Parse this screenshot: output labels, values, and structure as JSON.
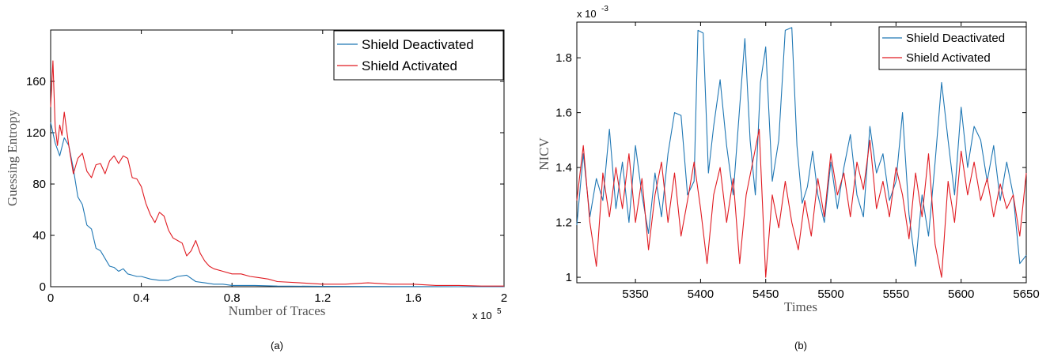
{
  "chart_data": [
    {
      "type": "line",
      "caption": "(a)",
      "xlabel": "Number of Traces",
      "ylabel": "Guessing Entropy",
      "x_multiplier_label": "x 10",
      "x_multiplier_exp": "5",
      "xlim": [
        0,
        2
      ],
      "ylim": [
        0,
        200
      ],
      "xticks": [
        0,
        0.4,
        0.8,
        1.2,
        1.6,
        2
      ],
      "xtick_labels": [
        "0",
        "0.4",
        "0.8",
        "1.2",
        "1.6",
        "2"
      ],
      "yticks": [
        0,
        40,
        80,
        120,
        160
      ],
      "ytick_labels": [
        "0",
        "40",
        "80",
        "120",
        "160"
      ],
      "grid": false,
      "legend_position": "top-right",
      "series": [
        {
          "name": "Shield Deactivated",
          "color": "#1f77b4",
          "x": [
            0,
            0.02,
            0.04,
            0.06,
            0.08,
            0.1,
            0.12,
            0.14,
            0.16,
            0.18,
            0.2,
            0.22,
            0.24,
            0.26,
            0.28,
            0.3,
            0.32,
            0.34,
            0.36,
            0.38,
            0.4,
            0.44,
            0.48,
            0.52,
            0.56,
            0.6,
            0.64,
            0.68,
            0.72,
            0.76,
            0.8,
            0.9,
            1.0,
            1.2,
            1.4,
            1.6,
            1.8,
            2.0
          ],
          "y": [
            128,
            112,
            102,
            116,
            110,
            92,
            70,
            64,
            48,
            45,
            30,
            28,
            22,
            16,
            15,
            12,
            14,
            10,
            9,
            8,
            8,
            6,
            5,
            5,
            8,
            9,
            4,
            3,
            2,
            2,
            1,
            1,
            0.5,
            0.3,
            0.2,
            0.1,
            0,
            0
          ]
        },
        {
          "name": "Shield Activated",
          "color": "#e01b22",
          "x": [
            0,
            0.01,
            0.02,
            0.03,
            0.04,
            0.05,
            0.06,
            0.08,
            0.1,
            0.12,
            0.14,
            0.16,
            0.18,
            0.2,
            0.22,
            0.24,
            0.26,
            0.28,
            0.3,
            0.32,
            0.34,
            0.36,
            0.38,
            0.4,
            0.42,
            0.44,
            0.46,
            0.48,
            0.5,
            0.52,
            0.54,
            0.56,
            0.58,
            0.6,
            0.62,
            0.64,
            0.66,
            0.68,
            0.7,
            0.72,
            0.76,
            0.8,
            0.84,
            0.88,
            0.92,
            0.96,
            1.0,
            1.1,
            1.2,
            1.3,
            1.4,
            1.5,
            1.6,
            1.7,
            1.8,
            1.9,
            2.0
          ],
          "y": [
            140,
            176,
            125,
            110,
            126,
            118,
            136,
            110,
            88,
            100,
            104,
            90,
            85,
            95,
            96,
            88,
            98,
            102,
            96,
            102,
            100,
            85,
            84,
            78,
            65,
            56,
            50,
            58,
            55,
            44,
            38,
            36,
            34,
            24,
            28,
            36,
            26,
            20,
            16,
            14,
            12,
            10,
            10,
            8,
            7,
            6,
            4,
            3,
            2,
            2,
            3,
            2,
            2,
            1,
            1,
            0.5,
            0.5
          ]
        }
      ]
    },
    {
      "type": "line",
      "caption": "(b)",
      "xlabel": "Times",
      "ylabel": "NICV",
      "y_multiplier_label": "x 10",
      "y_multiplier_exp": "-3",
      "xlim": [
        5305,
        5650
      ],
      "ylim": [
        0.98,
        1.93
      ],
      "xticks": [
        5350,
        5400,
        5450,
        5500,
        5550,
        5600,
        5650
      ],
      "xtick_labels": [
        "5350",
        "5400",
        "5450",
        "5500",
        "5550",
        "5600",
        "5650"
      ],
      "yticks": [
        1,
        1.2,
        1.4,
        1.6,
        1.8
      ],
      "ytick_labels": [
        "1",
        "1.2",
        "1.4",
        "1.6",
        "1.8"
      ],
      "grid": false,
      "legend_position": "top-right",
      "series": [
        {
          "name": "Shield Deactivated",
          "color": "#1f77b4",
          "x": [
            5305,
            5310,
            5315,
            5320,
            5325,
            5330,
            5335,
            5340,
            5345,
            5350,
            5355,
            5360,
            5365,
            5370,
            5375,
            5380,
            5385,
            5390,
            5395,
            5398,
            5402,
            5406,
            5410,
            5415,
            5420,
            5425,
            5430,
            5434,
            5438,
            5442,
            5446,
            5450,
            5455,
            5460,
            5465,
            5470,
            5474,
            5478,
            5482,
            5486,
            5490,
            5495,
            5500,
            5505,
            5510,
            5515,
            5520,
            5525,
            5530,
            5535,
            5540,
            5545,
            5550,
            5555,
            5560,
            5565,
            5570,
            5575,
            5580,
            5585,
            5590,
            5595,
            5600,
            5605,
            5610,
            5615,
            5620,
            5625,
            5630,
            5635,
            5640,
            5645,
            5650
          ],
          "y": [
            1.19,
            1.45,
            1.22,
            1.36,
            1.28,
            1.54,
            1.25,
            1.42,
            1.2,
            1.48,
            1.3,
            1.16,
            1.38,
            1.22,
            1.45,
            1.6,
            1.59,
            1.3,
            1.35,
            1.9,
            1.89,
            1.38,
            1.55,
            1.72,
            1.48,
            1.3,
            1.62,
            1.87,
            1.5,
            1.3,
            1.71,
            1.84,
            1.35,
            1.5,
            1.9,
            1.91,
            1.48,
            1.27,
            1.33,
            1.46,
            1.3,
            1.2,
            1.42,
            1.25,
            1.4,
            1.52,
            1.3,
            1.22,
            1.55,
            1.38,
            1.45,
            1.28,
            1.35,
            1.6,
            1.23,
            1.04,
            1.3,
            1.15,
            1.42,
            1.71,
            1.5,
            1.3,
            1.62,
            1.4,
            1.55,
            1.5,
            1.35,
            1.48,
            1.28,
            1.42,
            1.3,
            1.05,
            1.08
          ]
        },
        {
          "name": "Shield Activated",
          "color": "#e01b22",
          "x": [
            5305,
            5310,
            5315,
            5320,
            5325,
            5330,
            5335,
            5340,
            5345,
            5350,
            5355,
            5360,
            5365,
            5370,
            5375,
            5380,
            5385,
            5390,
            5395,
            5400,
            5405,
            5410,
            5415,
            5420,
            5425,
            5430,
            5435,
            5440,
            5445,
            5450,
            5455,
            5460,
            5465,
            5470,
            5475,
            5480,
            5485,
            5490,
            5495,
            5500,
            5505,
            5510,
            5515,
            5520,
            5525,
            5530,
            5535,
            5540,
            5545,
            5550,
            5555,
            5560,
            5565,
            5570,
            5575,
            5580,
            5585,
            5590,
            5595,
            5600,
            5605,
            5610,
            5615,
            5620,
            5625,
            5630,
            5635,
            5640,
            5645,
            5650
          ],
          "y": [
            1.28,
            1.48,
            1.2,
            1.04,
            1.38,
            1.22,
            1.4,
            1.25,
            1.45,
            1.2,
            1.36,
            1.1,
            1.3,
            1.42,
            1.2,
            1.38,
            1.15,
            1.28,
            1.42,
            1.25,
            1.05,
            1.3,
            1.4,
            1.2,
            1.36,
            1.05,
            1.3,
            1.42,
            1.54,
            1.0,
            1.3,
            1.18,
            1.35,
            1.2,
            1.1,
            1.28,
            1.15,
            1.36,
            1.22,
            1.45,
            1.3,
            1.38,
            1.22,
            1.42,
            1.32,
            1.5,
            1.25,
            1.35,
            1.22,
            1.4,
            1.3,
            1.14,
            1.38,
            1.22,
            1.45,
            1.12,
            1.0,
            1.35,
            1.2,
            1.46,
            1.3,
            1.42,
            1.28,
            1.36,
            1.22,
            1.34,
            1.25,
            1.3,
            1.15,
            1.38
          ]
        }
      ]
    }
  ]
}
